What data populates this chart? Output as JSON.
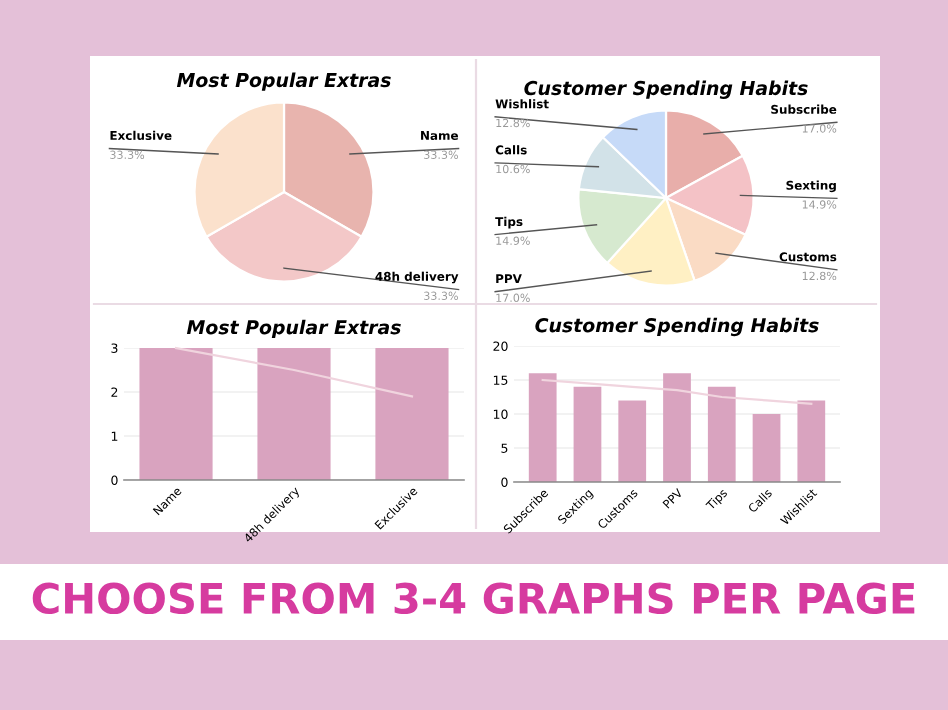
{
  "chart_data": [
    {
      "type": "pie",
      "title": "Most Popular Extras",
      "categories": [
        "Name",
        "48h delivery",
        "Exclusive"
      ],
      "values": [
        33.3,
        33.3,
        33.3
      ],
      "value_labels": [
        "33.3%",
        "33.3%",
        "33.3%"
      ],
      "colors": [
        "#e8b4ae",
        "#f3c8c8",
        "#fbe1cc"
      ]
    },
    {
      "type": "pie",
      "title": "Customer Spending Habits",
      "categories": [
        "Subscribe",
        "Sexting",
        "Customs",
        "PPV",
        "Tips",
        "Calls",
        "Wishlist"
      ],
      "values": [
        17.0,
        14.9,
        12.8,
        17.0,
        14.9,
        10.6,
        12.8
      ],
      "value_labels": [
        "17.0%",
        "14.9%",
        "12.8%",
        "17.0%",
        "14.9%",
        "10.6%",
        "12.8%"
      ],
      "colors": [
        "#e8aeaa",
        "#f4c2c6",
        "#fadbc4",
        "#fff0c4",
        "#d6e9cf",
        "#d2e2e8",
        "#c6daf8"
      ]
    },
    {
      "type": "bar",
      "title": "Most Popular Extras",
      "categories": [
        "Name",
        "48h delivery",
        "Exclusive"
      ],
      "ylim": [
        0,
        3
      ],
      "yticks": [
        0,
        1,
        2,
        3
      ],
      "grid": "y",
      "series": [
        {
          "color": "#d9a3bf",
          "values": [
            3,
            3,
            3
          ]
        },
        {
          "type": "line",
          "color": "#f0d4de",
          "values": [
            3,
            2.5,
            1.9
          ]
        }
      ]
    },
    {
      "type": "bar",
      "title": "Customer Spending Habits",
      "categories": [
        "Subscribe",
        "Sexting",
        "Customs",
        "PPV",
        "Tips",
        "Calls",
        "Wishlist"
      ],
      "ylim": [
        0,
        20
      ],
      "yticks": [
        0,
        5,
        10,
        15,
        20
      ],
      "grid": "y",
      "series": [
        {
          "color": "#d9a3bf",
          "values": [
            16,
            14,
            12,
            16,
            14,
            10,
            12
          ]
        },
        {
          "type": "line",
          "color": "#f0d4de",
          "values": [
            15,
            14.5,
            14,
            13.5,
            12.5,
            12,
            11.5
          ]
        }
      ]
    },
    {
      "type": "other",
      "annotations": [
        "CHOOSE FROM 3-4 GRAPHS PER PAGE"
      ]
    }
  ]
}
